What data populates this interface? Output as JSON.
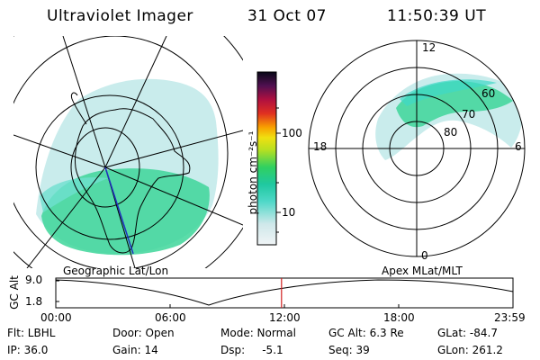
{
  "header": {
    "instrument": "Ultraviolet Imager",
    "date": "31 Oct 07",
    "time": "11:50:39 UT"
  },
  "colorbar": {
    "unit_label": "photon cm⁻²s⁻¹",
    "tick_labels": [
      "100",
      "10"
    ],
    "scale": "log"
  },
  "polar_plot": {
    "mlt_labels": [
      "12",
      "18",
      "6",
      "0"
    ],
    "mlat_labels": [
      "60",
      "70",
      "80"
    ]
  },
  "labels": {
    "left_panel": "Geographic Lat/Lon",
    "right_panel": "Apex MLat/MLT",
    "alt_axis": "GC Alt",
    "alt_ticks": [
      "9.0",
      "1.8"
    ]
  },
  "timeline": {
    "ticks": [
      "00:00",
      "06:00",
      "12:00",
      "18:00",
      "23:59"
    ],
    "current_time_hours": 11.84
  },
  "info": {
    "flt": "Flt: LBHL",
    "ip": "IP: 36.0",
    "door": "Door: Open",
    "gain": "Gain: 14",
    "mode": "Mode: Normal",
    "dsp": "Dsp:     -5.1",
    "gc_alt": "GC Alt: 6.3 Re",
    "seq": "Seq: 39",
    "glat": "GLat: -84.7",
    "glon": "GLon: 261.2"
  }
}
